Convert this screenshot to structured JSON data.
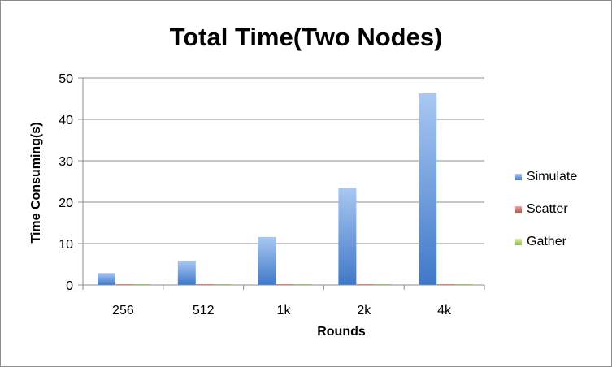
{
  "chart_data": {
    "type": "bar",
    "title": "Total Time(Two Nodes)",
    "xlabel": "Rounds",
    "ylabel": "Time Consuming(s)",
    "categories": [
      "256",
      "512",
      "1k",
      "2k",
      "4k"
    ],
    "series": [
      {
        "name": "Simulate",
        "values": [
          2.9,
          5.9,
          11.6,
          23.5,
          46.3
        ],
        "color": "#4f81bd"
      },
      {
        "name": "Scatter",
        "values": [
          0.1,
          0.1,
          0.1,
          0.1,
          0.1
        ],
        "color": "#c0504d"
      },
      {
        "name": "Gather",
        "values": [
          0.05,
          0.05,
          0.05,
          0.05,
          0.05
        ],
        "color": "#9bbb59"
      }
    ],
    "ylim": [
      0,
      50
    ],
    "yticks": [
      0,
      10,
      20,
      30,
      40,
      50
    ],
    "grid": true,
    "legend_position": "right"
  }
}
